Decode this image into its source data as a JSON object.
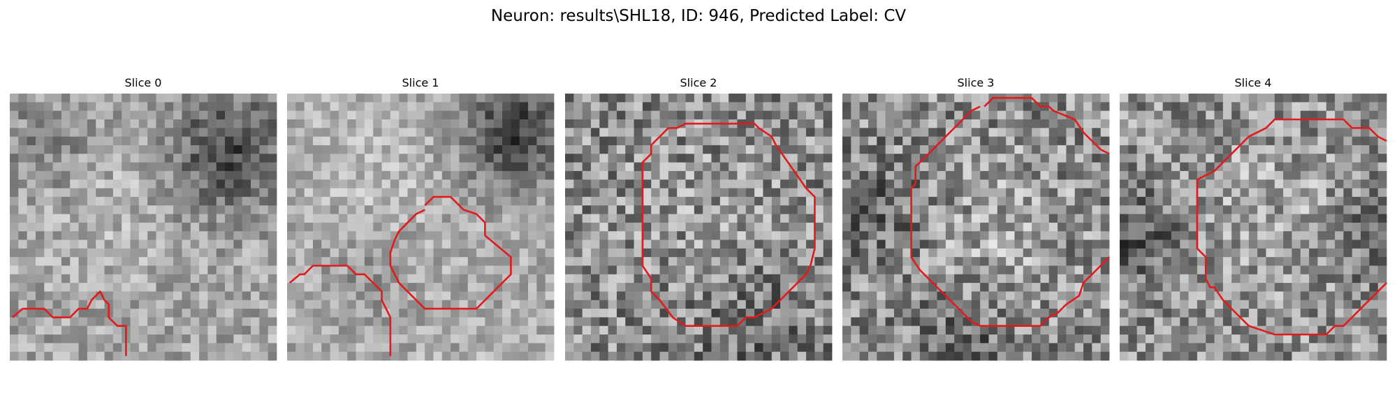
{
  "figure": {
    "suptitle": "Neuron: results\\SHL18, ID: 946, Predicted Label: CV",
    "contour_color": "#e31a1c",
    "colormap": "gray"
  },
  "slices": [
    {
      "title": "Slice 0"
    },
    {
      "title": "Slice 1"
    },
    {
      "title": "Slice 2"
    },
    {
      "title": "Slice 3"
    },
    {
      "title": "Slice 4"
    }
  ]
}
